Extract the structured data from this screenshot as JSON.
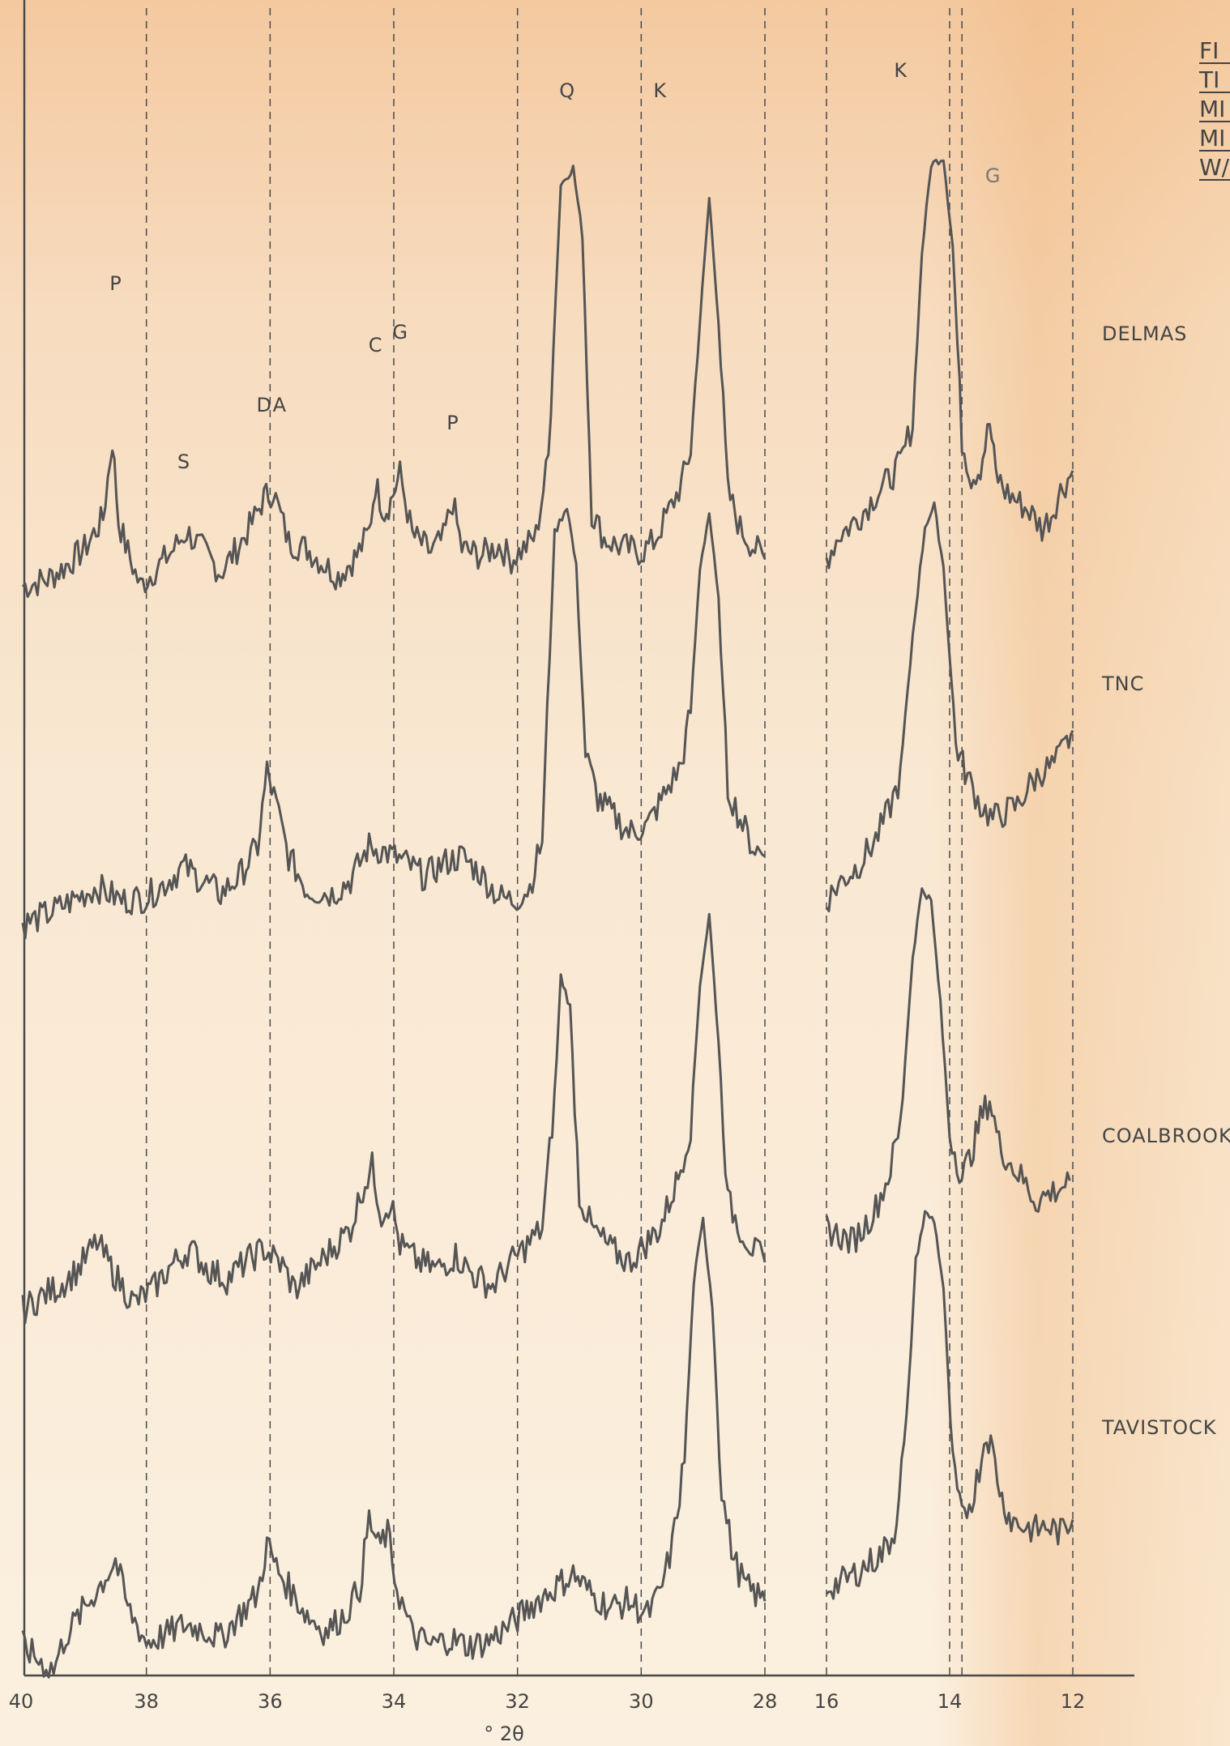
{
  "chart_data": {
    "type": "line",
    "title_fragments": [
      "FI",
      "TI",
      "MI",
      "MI",
      "W/"
    ],
    "xlabel": "° 2θ",
    "x_range_left": [
      40,
      28
    ],
    "x_range_right": [
      16,
      12
    ],
    "x_ticks_left": [
      "40",
      "38",
      "36",
      "34",
      "32",
      "30",
      "28"
    ],
    "x_ticks_right": [
      "16",
      "14",
      "12"
    ],
    "grid": "dashed vertical",
    "series": [
      {
        "name": "DELMAS",
        "points_left": [
          [
            40,
            -8
          ],
          [
            39.6,
            -6
          ],
          [
            39.3,
            -2
          ],
          [
            39,
            3
          ],
          [
            38.7,
            12
          ],
          [
            38.55,
            35
          ],
          [
            38.45,
            11
          ],
          [
            38.3,
            2
          ],
          [
            38.1,
            -8
          ],
          [
            37.9,
            -4
          ],
          [
            37.6,
            2
          ],
          [
            37.35,
            8
          ],
          [
            37.1,
            3
          ],
          [
            36.8,
            -4
          ],
          [
            36.5,
            4
          ],
          [
            36.25,
            12
          ],
          [
            36.1,
            18
          ],
          [
            35.95,
            20
          ],
          [
            35.7,
            5
          ],
          [
            35.4,
            3
          ],
          [
            35.1,
            -2
          ],
          [
            34.9,
            -5
          ],
          [
            34.6,
            1
          ],
          [
            34.4,
            8
          ],
          [
            34.3,
            22
          ],
          [
            34.15,
            14
          ],
          [
            34.05,
            17
          ],
          [
            33.9,
            25
          ],
          [
            33.7,
            7
          ],
          [
            33.4,
            2
          ],
          [
            33.2,
            6
          ],
          [
            33.05,
            17
          ],
          [
            32.9,
            3
          ],
          [
            32.6,
            1
          ],
          [
            32.3,
            4
          ],
          [
            32.1,
            0
          ],
          [
            31.9,
            3
          ],
          [
            31.7,
            7
          ],
          [
            31.5,
            30
          ],
          [
            31.3,
            110
          ],
          [
            31.1,
            115
          ],
          [
            30.95,
            95
          ],
          [
            30.8,
            14
          ],
          [
            30.6,
            6
          ],
          [
            30.4,
            4
          ],
          [
            30.2,
            3
          ],
          [
            30,
            2
          ],
          [
            29.8,
            5
          ],
          [
            29.55,
            14
          ],
          [
            29.35,
            22
          ],
          [
            29.2,
            32
          ],
          [
            29.05,
            70
          ],
          [
            28.9,
            106
          ],
          [
            28.75,
            70
          ],
          [
            28.6,
            20
          ],
          [
            28.4,
            9
          ],
          [
            28.2,
            4
          ],
          [
            28,
            0
          ]
        ],
        "points_right": [
          [
            16,
            0
          ],
          [
            15.8,
            7
          ],
          [
            15.6,
            10
          ],
          [
            15.4,
            14
          ],
          [
            15.2,
            19
          ],
          [
            15,
            23
          ],
          [
            14.8,
            28
          ],
          [
            14.6,
            40
          ],
          [
            14.45,
            90
          ],
          [
            14.3,
            116
          ],
          [
            14.1,
            118
          ],
          [
            13.95,
            92
          ],
          [
            13.8,
            35
          ],
          [
            13.65,
            24
          ],
          [
            13.5,
            27
          ],
          [
            13.35,
            40
          ],
          [
            13.25,
            25
          ],
          [
            13.1,
            20
          ],
          [
            12.9,
            17
          ],
          [
            12.7,
            14
          ],
          [
            12.5,
            9
          ],
          [
            12.35,
            13
          ],
          [
            12.2,
            20
          ],
          [
            12,
            26
          ]
        ],
        "peak_labels": [
          {
            "text": "P",
            "x": 38.5
          },
          {
            "text": "S",
            "x": 37.4
          },
          {
            "text": "D",
            "x": 36.1
          },
          {
            "text": "A",
            "x": 35.85
          },
          {
            "text": "C",
            "x": 34.3
          },
          {
            "text": "G",
            "x": 33.9
          },
          {
            "text": "P",
            "x": 33.05
          },
          {
            "text": "Q",
            "x": 31.2
          },
          {
            "text": "K",
            "x": 29.7
          },
          {
            "text": "K",
            "x": 14.8
          },
          {
            "text": "G",
            "x": 13.3
          }
        ]
      },
      {
        "name": "TNC",
        "points_left": [
          [
            40,
            -5
          ],
          [
            39.6,
            -2
          ],
          [
            39.2,
            2
          ],
          [
            38.8,
            6
          ],
          [
            38.4,
            2
          ],
          [
            38,
            3
          ],
          [
            37.7,
            7
          ],
          [
            37.4,
            12
          ],
          [
            37.1,
            8
          ],
          [
            36.8,
            4
          ],
          [
            36.5,
            9
          ],
          [
            36.2,
            18
          ],
          [
            36.05,
            40
          ],
          [
            35.9,
            30
          ],
          [
            35.7,
            15
          ],
          [
            35.4,
            5
          ],
          [
            35,
            4
          ],
          [
            34.7,
            8
          ],
          [
            34.4,
            18
          ],
          [
            34.1,
            16
          ],
          [
            33.8,
            13
          ],
          [
            33.5,
            9
          ],
          [
            33.2,
            13
          ],
          [
            32.9,
            15
          ],
          [
            32.6,
            10
          ],
          [
            32.3,
            3
          ],
          [
            32.05,
            2
          ],
          [
            31.8,
            6
          ],
          [
            31.6,
            20
          ],
          [
            31.4,
            110
          ],
          [
            31.2,
            118
          ],
          [
            31.05,
            100
          ],
          [
            30.9,
            45
          ],
          [
            30.7,
            32
          ],
          [
            30.4,
            26
          ],
          [
            30.2,
            22
          ],
          [
            29.9,
            24
          ],
          [
            29.6,
            34
          ],
          [
            29.35,
            42
          ],
          [
            29.2,
            58
          ],
          [
            29.05,
            100
          ],
          [
            28.9,
            116
          ],
          [
            28.75,
            90
          ],
          [
            28.6,
            35
          ],
          [
            28.4,
            26
          ],
          [
            28.2,
            18
          ],
          [
            28,
            15
          ]
        ],
        "points_right": [
          [
            16,
            2
          ],
          [
            15.8,
            7
          ],
          [
            15.5,
            12
          ],
          [
            15.2,
            20
          ],
          [
            15,
            28
          ],
          [
            14.8,
            38
          ],
          [
            14.6,
            80
          ],
          [
            14.4,
            112
          ],
          [
            14.25,
            118
          ],
          [
            14.1,
            100
          ],
          [
            13.9,
            48
          ],
          [
            13.75,
            40
          ],
          [
            13.5,
            30
          ],
          [
            13.3,
            26
          ],
          [
            13.1,
            28
          ],
          [
            12.9,
            30
          ],
          [
            12.7,
            36
          ],
          [
            12.5,
            40
          ],
          [
            12.3,
            42
          ],
          [
            12.1,
            48
          ],
          [
            12,
            52
          ]
        ],
        "peak_labels": []
      },
      {
        "name": "COALBROOK",
        "points_left": [
          [
            40,
            -4
          ],
          [
            39.7,
            0
          ],
          [
            39.4,
            3
          ],
          [
            39.1,
            8
          ],
          [
            38.8,
            16
          ],
          [
            38.5,
            6
          ],
          [
            38.2,
            -2
          ],
          [
            37.9,
            2
          ],
          [
            37.6,
            9
          ],
          [
            37.3,
            14
          ],
          [
            37,
            8
          ],
          [
            36.7,
            5
          ],
          [
            36.4,
            10
          ],
          [
            36.1,
            14
          ],
          [
            35.8,
            9
          ],
          [
            35.6,
            2
          ],
          [
            35.3,
            8
          ],
          [
            35,
            14
          ],
          [
            34.7,
            20
          ],
          [
            34.5,
            32
          ],
          [
            34.35,
            38
          ],
          [
            34.2,
            24
          ],
          [
            34.05,
            28
          ],
          [
            33.9,
            15
          ],
          [
            33.6,
            10
          ],
          [
            33.3,
            8
          ],
          [
            33,
            12
          ],
          [
            32.7,
            6
          ],
          [
            32.4,
            3
          ],
          [
            32.2,
            8
          ],
          [
            32,
            12
          ],
          [
            31.8,
            16
          ],
          [
            31.6,
            20
          ],
          [
            31.4,
            58
          ],
          [
            31.3,
            94
          ],
          [
            31.15,
            85
          ],
          [
            31,
            30
          ],
          [
            30.8,
            20
          ],
          [
            30.5,
            14
          ],
          [
            30.2,
            10
          ],
          [
            30,
            14
          ],
          [
            29.7,
            20
          ],
          [
            29.4,
            35
          ],
          [
            29.2,
            50
          ],
          [
            29.05,
            92
          ],
          [
            28.9,
            112
          ],
          [
            28.75,
            75
          ],
          [
            28.6,
            28
          ],
          [
            28.4,
            20
          ],
          [
            28.2,
            14
          ],
          [
            28,
            10
          ]
        ],
        "points_right": [
          [
            16,
            20
          ],
          [
            15.8,
            18
          ],
          [
            15.6,
            16
          ],
          [
            15.4,
            20
          ],
          [
            15.2,
            26
          ],
          [
            15,
            35
          ],
          [
            14.8,
            50
          ],
          [
            14.6,
            100
          ],
          [
            14.45,
            120
          ],
          [
            14.3,
            116
          ],
          [
            14.15,
            86
          ],
          [
            14,
            48
          ],
          [
            13.8,
            35
          ],
          [
            13.65,
            42
          ],
          [
            13.5,
            52
          ],
          [
            13.35,
            58
          ],
          [
            13.2,
            45
          ],
          [
            13.05,
            40
          ],
          [
            12.8,
            34
          ],
          [
            12.6,
            28
          ],
          [
            12.4,
            30
          ],
          [
            12.2,
            32
          ],
          [
            12.05,
            34
          ]
        ],
        "peak_labels": []
      },
      {
        "name": "TAVISTOCK",
        "points_left": [
          [
            40,
            -5
          ],
          [
            39.7,
            -10
          ],
          [
            39.5,
            -12
          ],
          [
            39.3,
            -2
          ],
          [
            39,
            6
          ],
          [
            38.7,
            14
          ],
          [
            38.5,
            20
          ],
          [
            38.3,
            6
          ],
          [
            38,
            -4
          ],
          [
            37.7,
            -2
          ],
          [
            37.4,
            1
          ],
          [
            37.1,
            0
          ],
          [
            36.8,
            -3
          ],
          [
            36.5,
            4
          ],
          [
            36.2,
            10
          ],
          [
            36.05,
            25
          ],
          [
            35.9,
            18
          ],
          [
            35.7,
            12
          ],
          [
            35.4,
            4
          ],
          [
            35.1,
            -1
          ],
          [
            34.8,
            4
          ],
          [
            34.55,
            12
          ],
          [
            34.4,
            32
          ],
          [
            34.25,
            24
          ],
          [
            34.1,
            28
          ],
          [
            33.95,
            12
          ],
          [
            33.7,
            -2
          ],
          [
            33.4,
            -5
          ],
          [
            33.1,
            -3
          ],
          [
            32.8,
            -5
          ],
          [
            32.5,
            -4
          ],
          [
            32.2,
            0
          ],
          [
            32,
            3
          ],
          [
            31.7,
            8
          ],
          [
            31.4,
            12
          ],
          [
            31.1,
            16
          ],
          [
            30.8,
            10
          ],
          [
            30.5,
            6
          ],
          [
            30.2,
            8
          ],
          [
            29.9,
            4
          ],
          [
            29.7,
            10
          ],
          [
            29.5,
            24
          ],
          [
            29.3,
            50
          ],
          [
            29.15,
            102
          ],
          [
            29,
            120
          ],
          [
            28.85,
            95
          ],
          [
            28.7,
            40
          ],
          [
            28.5,
            20
          ],
          [
            28.3,
            12
          ],
          [
            28,
            8
          ]
        ],
        "points_right": [
          [
            16,
            12
          ],
          [
            15.7,
            14
          ],
          [
            15.4,
            18
          ],
          [
            15.1,
            22
          ],
          [
            14.9,
            28
          ],
          [
            14.7,
            60
          ],
          [
            14.55,
            108
          ],
          [
            14.4,
            122
          ],
          [
            14.25,
            120
          ],
          [
            14.1,
            100
          ],
          [
            13.95,
            48
          ],
          [
            13.8,
            32
          ],
          [
            13.6,
            40
          ],
          [
            13.4,
            58
          ],
          [
            13.3,
            52
          ],
          [
            13.15,
            38
          ],
          [
            13,
            32
          ],
          [
            12.8,
            30
          ],
          [
            12.6,
            29
          ],
          [
            12.4,
            30
          ],
          [
            12.2,
            28
          ],
          [
            12,
            32
          ]
        ],
        "peak_labels": []
      }
    ]
  }
}
